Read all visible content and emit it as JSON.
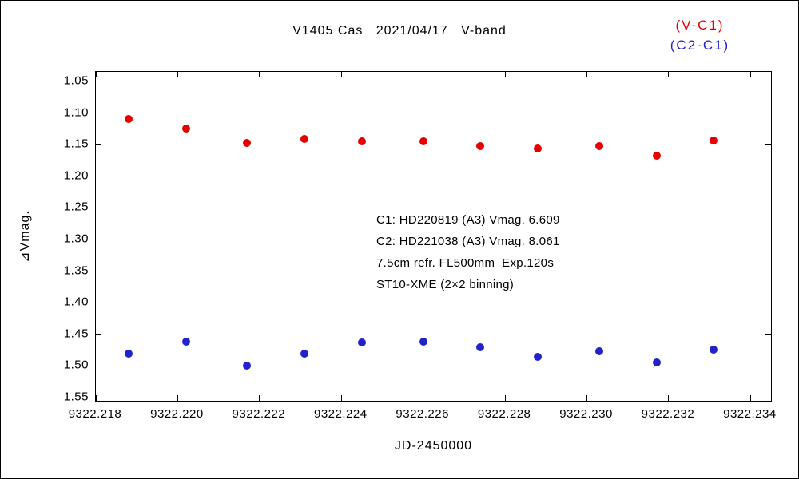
{
  "title": "V1405 Cas   2021/04/17   V-band",
  "legend": [
    {
      "label": "(V-C1)",
      "color": "#e60000"
    },
    {
      "label": "(C2-C1)",
      "color": "#2222cc"
    }
  ],
  "annotation_lines": [
    "C1: HD220819 (A3) Vmag. 6.609",
    "C2: HD221038 (A3) Vmag. 8.061",
    "7.5cm refr. FL500mm  Exp.120s",
    "ST10-XME (2×2 binning)"
  ],
  "chart_data": {
    "type": "scatter",
    "title": "V1405 Cas 2021/04/17 V-band",
    "xlabel": "JD-2450000",
    "ylabel": "⊿Vmag.",
    "xlim": [
      9322.218,
      9322.2345
    ],
    "ylim": [
      1.035,
      1.555
    ],
    "y_axis_note": "magnitude scale, increases downward (1.05 at top, 1.55 at bottom)",
    "grid": false,
    "legend_position": "top-right-outside",
    "xticks": [
      9322.218,
      9322.22,
      9322.222,
      9322.224,
      9322.226,
      9322.228,
      9322.23,
      9322.232,
      9322.234
    ],
    "xtick_labels": [
      "9322.218",
      "9322.220",
      "9322.222",
      "9322.224",
      "9322.226",
      "9322.228",
      "9322.230",
      "9322.232",
      "9322.234"
    ],
    "yticks": [
      1.05,
      1.1,
      1.15,
      1.2,
      1.25,
      1.3,
      1.35,
      1.4,
      1.45,
      1.5,
      1.55
    ],
    "ytick_labels": [
      "1.05",
      "1.10",
      "1.15",
      "1.20",
      "1.25",
      "1.30",
      "1.35",
      "1.40",
      "1.45",
      "1.50",
      "1.55"
    ],
    "series": [
      {
        "name": "V-C1",
        "slug": "v-c1",
        "color": "#e60000",
        "x": [
          9322.2188,
          9322.2202,
          9322.2217,
          9322.2231,
          9322.2245,
          9322.226,
          9322.2274,
          9322.2288,
          9322.2303,
          9322.2317,
          9322.2331
        ],
        "y": [
          1.11,
          1.125,
          1.147,
          1.141,
          1.145,
          1.145,
          1.152,
          1.156,
          1.153,
          1.168,
          1.143
        ]
      },
      {
        "name": "C2-C1",
        "slug": "c2-c1",
        "color": "#2222cc",
        "x": [
          9322.2188,
          9322.2202,
          9322.2217,
          9322.2231,
          9322.2245,
          9322.226,
          9322.2274,
          9322.2288,
          9322.2303,
          9322.2317,
          9322.2331
        ],
        "y": [
          1.481,
          1.461,
          1.499,
          1.481,
          1.463,
          1.461,
          1.47,
          1.486,
          1.477,
          1.495,
          1.474
        ]
      }
    ]
  }
}
